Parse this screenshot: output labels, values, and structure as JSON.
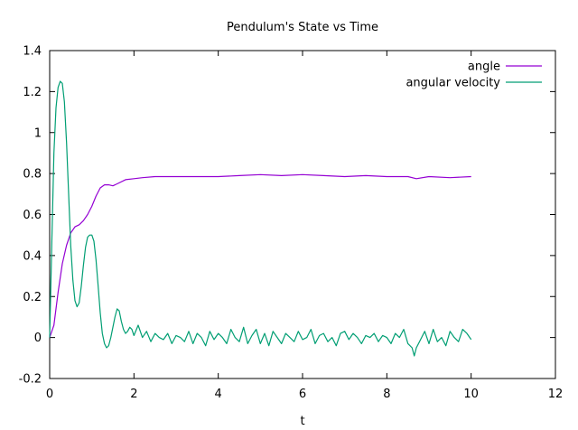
{
  "chart_data": {
    "type": "line",
    "title": "Pendulum's State vs Time",
    "xlabel": "t",
    "ylabel": "",
    "xlim": [
      0,
      12
    ],
    "ylim": [
      -0.2,
      1.4
    ],
    "x_ticks": [
      "0",
      "2",
      "4",
      "6",
      "8",
      "10",
      "12"
    ],
    "y_ticks": [
      "-0.2",
      "0",
      "0.2",
      "0.4",
      "0.6",
      "0.8",
      "1",
      "1.2",
      "1.4"
    ],
    "grid": false,
    "legend_position": "top-right",
    "series": [
      {
        "name": "angle",
        "color": "#9400d3",
        "x": [
          0,
          0.1,
          0.2,
          0.3,
          0.4,
          0.5,
          0.6,
          0.7,
          0.8,
          0.9,
          1.0,
          1.1,
          1.2,
          1.3,
          1.4,
          1.5,
          1.6,
          1.8,
          2.0,
          2.2,
          2.5,
          3.0,
          3.5,
          4.0,
          4.5,
          5.0,
          5.5,
          6.0,
          6.5,
          7.0,
          7.5,
          8.0,
          8.5,
          8.7,
          9.0,
          9.5,
          10.0
        ],
        "y": [
          0.0,
          0.06,
          0.22,
          0.36,
          0.45,
          0.51,
          0.54,
          0.55,
          0.57,
          0.6,
          0.64,
          0.69,
          0.73,
          0.745,
          0.745,
          0.74,
          0.75,
          0.77,
          0.775,
          0.78,
          0.785,
          0.785,
          0.785,
          0.785,
          0.79,
          0.795,
          0.79,
          0.795,
          0.79,
          0.785,
          0.79,
          0.785,
          0.785,
          0.775,
          0.785,
          0.78,
          0.785
        ]
      },
      {
        "name": "angular velocity",
        "color": "#009e73",
        "x": [
          0,
          0.05,
          0.1,
          0.15,
          0.2,
          0.25,
          0.3,
          0.35,
          0.4,
          0.45,
          0.5,
          0.55,
          0.6,
          0.65,
          0.7,
          0.75,
          0.8,
          0.85,
          0.9,
          0.95,
          1.0,
          1.05,
          1.1,
          1.15,
          1.2,
          1.25,
          1.3,
          1.35,
          1.4,
          1.45,
          1.5,
          1.55,
          1.6,
          1.65,
          1.7,
          1.75,
          1.8,
          1.85,
          1.9,
          1.95,
          2.0,
          2.1,
          2.2,
          2.3,
          2.4,
          2.5,
          2.6,
          2.7,
          2.8,
          2.9,
          3.0,
          3.1,
          3.2,
          3.3,
          3.4,
          3.5,
          3.6,
          3.7,
          3.8,
          3.9,
          4.0,
          4.1,
          4.2,
          4.3,
          4.4,
          4.5,
          4.6,
          4.7,
          4.8,
          4.9,
          5.0,
          5.1,
          5.2,
          5.3,
          5.4,
          5.5,
          5.6,
          5.7,
          5.8,
          5.9,
          6.0,
          6.1,
          6.2,
          6.3,
          6.4,
          6.5,
          6.6,
          6.7,
          6.8,
          6.9,
          7.0,
          7.1,
          7.2,
          7.3,
          7.4,
          7.5,
          7.6,
          7.7,
          7.8,
          7.9,
          8.0,
          8.1,
          8.2,
          8.3,
          8.4,
          8.5,
          8.6,
          8.65,
          8.7,
          8.8,
          8.9,
          9.0,
          9.1,
          9.2,
          9.3,
          9.4,
          9.5,
          9.6,
          9.7,
          9.8,
          9.9,
          10.0
        ],
        "y": [
          0.0,
          0.45,
          0.9,
          1.12,
          1.22,
          1.25,
          1.24,
          1.15,
          0.95,
          0.7,
          0.45,
          0.28,
          0.18,
          0.15,
          0.17,
          0.25,
          0.35,
          0.44,
          0.49,
          0.5,
          0.5,
          0.47,
          0.38,
          0.25,
          0.12,
          0.02,
          -0.03,
          -0.05,
          -0.04,
          0.0,
          0.05,
          0.1,
          0.14,
          0.13,
          0.08,
          0.04,
          0.02,
          0.03,
          0.05,
          0.04,
          0.01,
          0.06,
          0.0,
          0.03,
          -0.02,
          0.02,
          0.0,
          -0.01,
          0.02,
          -0.03,
          0.01,
          0.0,
          -0.02,
          0.03,
          -0.03,
          0.02,
          0.0,
          -0.04,
          0.03,
          -0.01,
          0.02,
          0.0,
          -0.03,
          0.04,
          0.0,
          -0.02,
          0.05,
          -0.03,
          0.01,
          0.04,
          -0.03,
          0.02,
          -0.04,
          0.03,
          0.0,
          -0.03,
          0.02,
          0.0,
          -0.02,
          0.03,
          -0.01,
          0.0,
          0.04,
          -0.03,
          0.01,
          0.02,
          -0.02,
          0.0,
          -0.04,
          0.02,
          0.03,
          -0.01,
          0.02,
          0.0,
          -0.03,
          0.01,
          0.0,
          0.02,
          -0.02,
          0.01,
          0.0,
          -0.03,
          0.02,
          0.0,
          0.04,
          -0.03,
          -0.05,
          -0.09,
          -0.05,
          -0.01,
          0.03,
          -0.03,
          0.04,
          -0.02,
          0.0,
          -0.04,
          0.03,
          0.0,
          -0.02,
          0.04,
          0.02,
          -0.01
        ]
      }
    ]
  }
}
